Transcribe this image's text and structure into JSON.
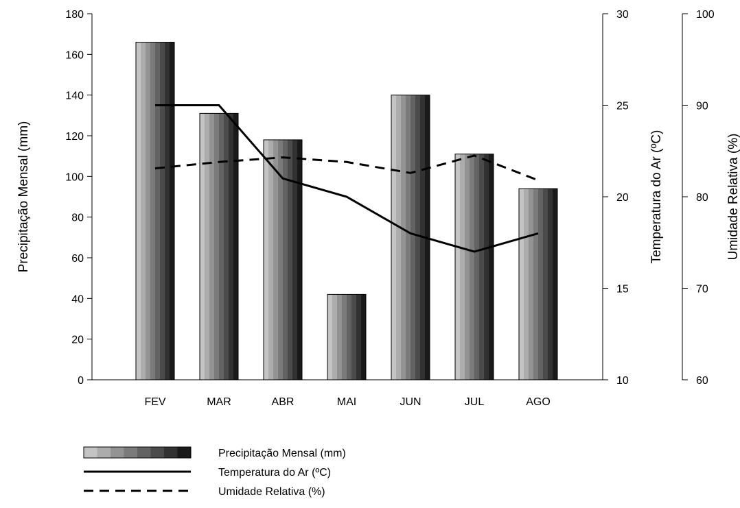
{
  "chart_data": {
    "type": "bar",
    "categories": [
      "FEV",
      "MAR",
      "ABR",
      "MAI",
      "JUN",
      "JUL",
      "AGO"
    ],
    "title": "",
    "xlabel": "",
    "series": [
      {
        "name": "Precipitação Mensal (mm)",
        "type": "bar",
        "axis": "left",
        "values": [
          166,
          131,
          118,
          42,
          140,
          111,
          94
        ]
      },
      {
        "name": "Temperatura do Ar (ºC)",
        "type": "line",
        "style": "solid",
        "axis": "right1",
        "values": [
          25.0,
          25.0,
          21.0,
          20.0,
          18.0,
          17.0,
          18.0
        ]
      },
      {
        "name": "Umidade Relativa (%)",
        "type": "line",
        "style": "dashed",
        "axis": "right2",
        "values": [
          83.1,
          83.8,
          84.3,
          83.8,
          82.6,
          84.5,
          81.8
        ]
      }
    ],
    "axes": {
      "left": {
        "label": "Precipitação Mensal (mm)",
        "range": [
          0,
          180
        ],
        "ticks": [
          "0",
          "20",
          "40",
          "60",
          "80",
          "100",
          "120",
          "140",
          "160",
          "180"
        ]
      },
      "right1": {
        "label": "Temperatura do Ar (ºC)",
        "range": [
          10,
          30
        ],
        "ticks": [
          "10",
          "15",
          "20",
          "25",
          "30"
        ]
      },
      "right2": {
        "label": "Umidade Relativa (%)",
        "range": [
          60,
          100
        ],
        "ticks": [
          "60",
          "70",
          "80",
          "90",
          "100"
        ]
      }
    },
    "grid": false,
    "legend_position": "bottom-left",
    "colors": {
      "bar_light": "#c4c4c4",
      "bar_dark": "#1a1a1a",
      "line": "#000000"
    }
  }
}
